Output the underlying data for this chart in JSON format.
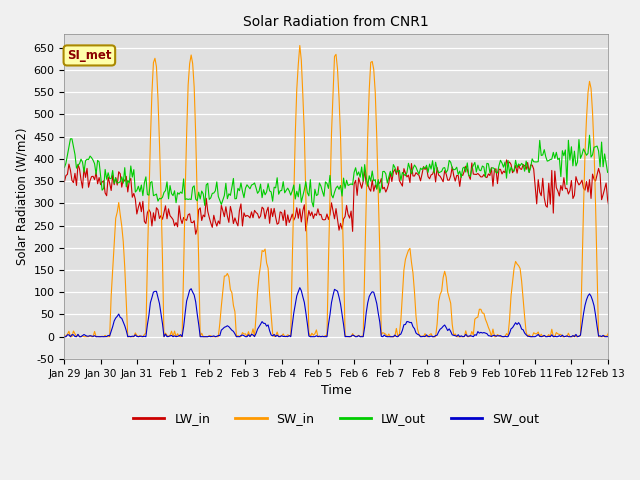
{
  "title": "Solar Radiation from CNR1",
  "xlabel": "Time",
  "ylabel": "Solar Radiation (W/m2)",
  "ylim": [
    -50,
    680
  ],
  "xlim": [
    0,
    360
  ],
  "fig_bg_color": "#f0f0f0",
  "plot_bg_color": "#e0e0e0",
  "colors": {
    "LW_in": "#cc0000",
    "SW_in": "#ff9900",
    "LW_out": "#00cc00",
    "SW_out": "#0000cc"
  },
  "xtick_labels": [
    "Jan 29",
    "Jan 30",
    "Jan 31",
    "Feb 1",
    "Feb 2",
    "Feb 3",
    "Feb 4",
    "Feb 5",
    "Feb 6",
    "Feb 7",
    "Feb 8",
    "Feb 9",
    "Feb 10",
    "Feb 11",
    "Feb 12",
    "Feb 13"
  ],
  "xtick_positions": [
    0,
    24,
    48,
    72,
    96,
    120,
    144,
    168,
    192,
    216,
    240,
    264,
    288,
    312,
    336,
    360
  ],
  "yticks": [
    -50,
    0,
    50,
    100,
    150,
    200,
    250,
    300,
    350,
    400,
    450,
    500,
    550,
    600,
    650
  ],
  "legend_labels": [
    "LW_in",
    "SW_in",
    "LW_out",
    "SW_out"
  ],
  "annotation_text": "SI_met",
  "lw": 0.8
}
